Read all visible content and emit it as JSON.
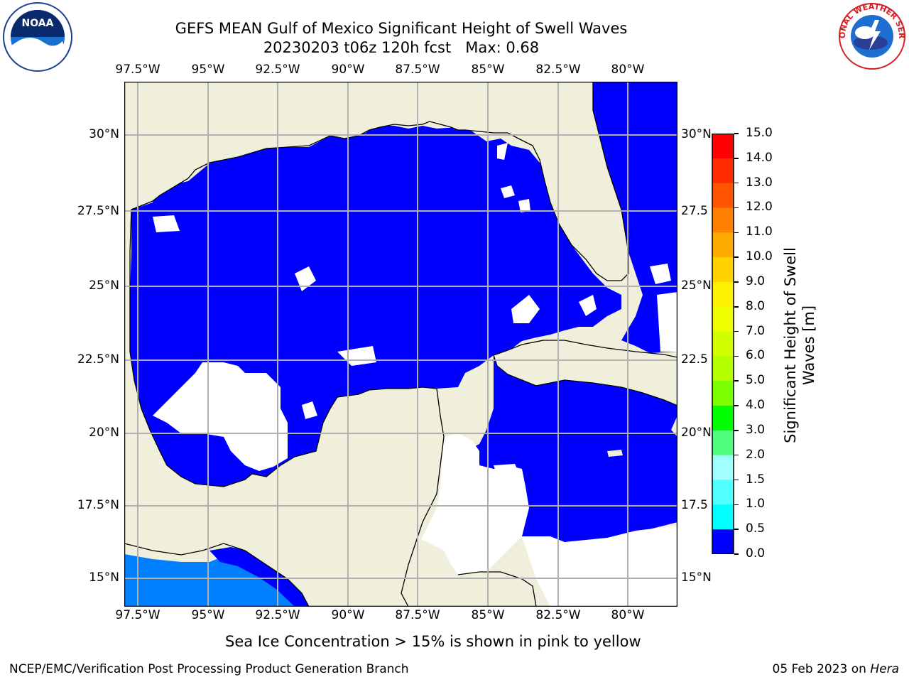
{
  "title": {
    "line1": "GEFS MEAN Gulf of Mexico Significant Height of Swell Waves",
    "line2": "20230203 t06z 120h fcst   Max: 0.68"
  },
  "logos": {
    "left": {
      "name": "noaa-logo",
      "text": "NOAA"
    },
    "right": {
      "name": "nws-logo",
      "text": "NATIONAL WEATHER SERVICE"
    }
  },
  "map": {
    "lon_labels": [
      "97.5°W",
      "95°W",
      "92.5°W",
      "90°W",
      "87.5°W",
      "85°W",
      "82.5°W",
      "80°W"
    ],
    "lat_labels": [
      "30°N",
      "27.5°N",
      "25°N",
      "22.5°N",
      "20°N",
      "17.5°N",
      "15°N"
    ],
    "right_lat_labels": [
      "30°N",
      "27.5",
      "25°N",
      "22.5",
      "20°N",
      "17.5",
      "15°N"
    ],
    "colors": {
      "land": "#efefdc",
      "ocean_low": "#0000ff",
      "ocean_mid": "#0080ff",
      "no_data": "#ffffff",
      "grid": "#b0b0b0",
      "coast": "#000000"
    }
  },
  "colorbar": {
    "label_line1": "Significant Height of Swell",
    "label_line2": "Waves [m]",
    "ticks": [
      "15.0",
      "14.0",
      "13.0",
      "12.0",
      "11.0",
      "10.0",
      "9.0",
      "8.0",
      "7.0",
      "6.0",
      "5.0",
      "4.0",
      "3.0",
      "2.0",
      "1.5",
      "1.0",
      "0.5",
      "0.0"
    ],
    "colors": [
      "#ff0000",
      "#ff2a00",
      "#ff5500",
      "#ff8000",
      "#ffaa00",
      "#ffd200",
      "#fff200",
      "#f0ff00",
      "#d2ff00",
      "#b4ff00",
      "#7cff00",
      "#00ff00",
      "#50ff80",
      "#a0ffff",
      "#50ffff",
      "#00ffff",
      "#0080ff",
      "#0000ff"
    ]
  },
  "note": "Sea Ice Concentration > 15% is shown in pink to yellow",
  "footer": {
    "left": "NCEP/EMC/Verification Post Processing Product Generation Branch",
    "right_date": "05 Feb 2023 on ",
    "right_host": "Hera"
  }
}
